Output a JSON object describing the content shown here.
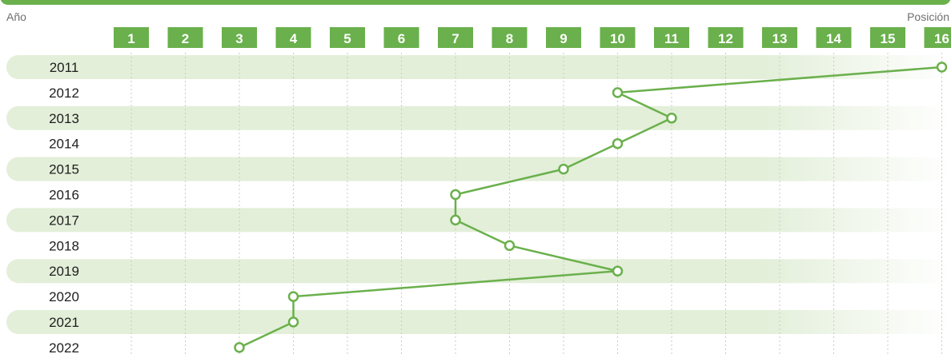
{
  "chart_data": {
    "type": "line",
    "xlabel": "Posición",
    "ylabel": "Año",
    "positions": [
      "1",
      "2",
      "3",
      "4",
      "5",
      "6",
      "7",
      "8",
      "9",
      "10",
      "11",
      "12",
      "13",
      "14",
      "15",
      "16"
    ],
    "years": [
      "2011",
      "2012",
      "2013",
      "2014",
      "2015",
      "2016",
      "2017",
      "2018",
      "2019",
      "2020",
      "2021",
      "2022"
    ],
    "series": [
      {
        "values": [
          16,
          10,
          11,
          10,
          9,
          7,
          7,
          8,
          10,
          4,
          4,
          3
        ]
      }
    ],
    "xlim": [
      1,
      16
    ],
    "grid": true
  },
  "colors": {
    "accent": "#6ab04c",
    "band": "#e3efd9",
    "grid": "#c8c8c8",
    "point_fill": "#ffffff"
  }
}
